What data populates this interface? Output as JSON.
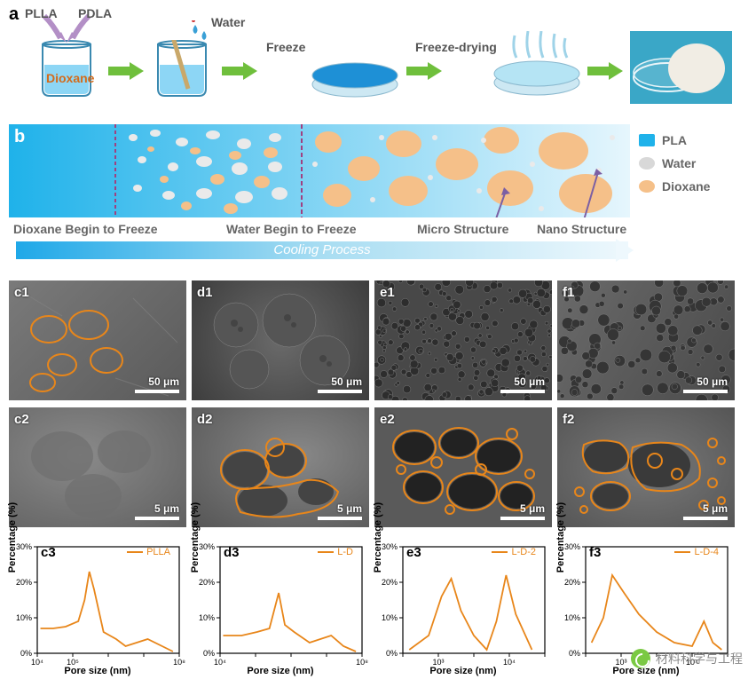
{
  "panel_a": {
    "label": "a",
    "reagents": {
      "left": "PLLA",
      "right": "PDLA",
      "solvent": "Dioxane",
      "add": "Water"
    },
    "steps": [
      "",
      "",
      "Freeze",
      "Freeze-drying",
      ""
    ],
    "arrow_color": "#6fbf3c",
    "beaker_fill": "#8dd6f5",
    "beaker_stroke": "#3a89b0",
    "dish_fill_1": "#1e90d6",
    "dish_fill_2": "#b5e4f4",
    "photo_bg": "#3aa7c7",
    "sample_color": "#f1ede4",
    "purple_arrow": "#b38fc6"
  },
  "panel_b": {
    "label": "b",
    "bg_gradient": [
      "#1fb2ea",
      "#c8ecf9"
    ],
    "legend": {
      "pla": {
        "color": "#1fb2ea",
        "label": "PLA"
      },
      "water": {
        "color": "#d8d8d8",
        "label": "Water"
      },
      "dioxane": {
        "color": "#f5c089",
        "label": "Dioxane"
      }
    },
    "captions": {
      "c1": "Dioxane Begin to Freeze",
      "c2": "Water Begin to Freeze",
      "c3": "Micro Structure",
      "c4": "Nano Structure"
    },
    "cooling_label": "Cooling Process",
    "pointer_color": "#7b5fa3"
  },
  "sem": {
    "outline_color": "#e8861a",
    "row1_scale": "50 μm",
    "row2_scale": "5 μm",
    "labels_r1": [
      "c1",
      "d1",
      "e1",
      "f1"
    ],
    "labels_r2": [
      "c2",
      "d2",
      "e2",
      "f2"
    ],
    "bg_tones": [
      "#6a6a6a",
      "#5a5a5a",
      "#4d4d4d",
      "#585858"
    ]
  },
  "charts": {
    "labels": [
      "c3",
      "d3",
      "e3",
      "f3"
    ],
    "series_names": [
      "PLLA",
      "L-D",
      "L-D-2",
      "L-D-4"
    ],
    "line_color": "#e8861a",
    "x_label": "Pore size (nm)",
    "y_label": "Percentage (%)",
    "y_ticks": [
      0,
      10,
      20,
      30
    ],
    "plots": [
      {
        "x_ticks": [
          "10⁴",
          "10⁵",
          "",
          "",
          "10⁸"
        ],
        "xlim": [
          3.7,
          8.2
        ],
        "pts": [
          [
            3.8,
            7
          ],
          [
            4.2,
            7
          ],
          [
            4.6,
            7.5
          ],
          [
            5.0,
            9
          ],
          [
            5.2,
            15
          ],
          [
            5.35,
            23
          ],
          [
            5.5,
            18
          ],
          [
            5.8,
            6
          ],
          [
            6.2,
            4
          ],
          [
            6.5,
            2
          ],
          [
            7.2,
            4
          ],
          [
            8.0,
            0.5
          ]
        ]
      },
      {
        "x_ticks": [
          "10⁴",
          "",
          "",
          "",
          "10⁸"
        ],
        "xlim": [
          3.6,
          8.2
        ],
        "pts": [
          [
            3.7,
            5
          ],
          [
            4.3,
            5
          ],
          [
            4.8,
            6
          ],
          [
            5.2,
            7
          ],
          [
            5.5,
            17
          ],
          [
            5.7,
            8
          ],
          [
            6.0,
            6
          ],
          [
            6.5,
            3
          ],
          [
            7.2,
            5
          ],
          [
            7.6,
            2
          ],
          [
            8.0,
            0.5
          ]
        ]
      },
      {
        "x_ticks": [
          "",
          "10³",
          "",
          "10⁴",
          ""
        ],
        "xlim": [
          2.4,
          4.6
        ],
        "pts": [
          [
            2.5,
            1
          ],
          [
            2.8,
            5
          ],
          [
            3.0,
            16
          ],
          [
            3.15,
            21
          ],
          [
            3.3,
            12
          ],
          [
            3.5,
            5
          ],
          [
            3.7,
            1
          ],
          [
            3.85,
            9
          ],
          [
            4.0,
            22
          ],
          [
            4.15,
            11
          ],
          [
            4.4,
            1
          ]
        ]
      },
      {
        "x_ticks": [
          "",
          "10³",
          "",
          "10⁴",
          ""
        ],
        "xlim": [
          2.4,
          4.8
        ],
        "pts": [
          [
            2.5,
            3
          ],
          [
            2.7,
            10
          ],
          [
            2.85,
            22
          ],
          [
            3.05,
            17
          ],
          [
            3.3,
            11
          ],
          [
            3.6,
            6
          ],
          [
            3.9,
            3
          ],
          [
            4.2,
            2
          ],
          [
            4.4,
            9
          ],
          [
            4.55,
            3
          ],
          [
            4.7,
            1
          ]
        ]
      }
    ]
  },
  "watermark": "材料科学与工程"
}
